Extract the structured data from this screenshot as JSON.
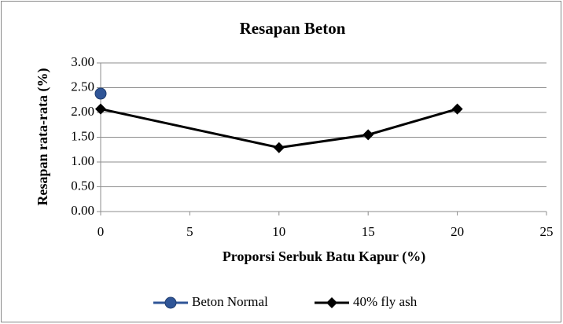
{
  "chart_data": {
    "type": "line",
    "title": "Resapan Beton",
    "xlabel": "Proporsi Serbuk Batu Kapur (%)",
    "ylabel": "Resapan rata-rata (%)",
    "series": [
      {
        "name": "Beton Normal",
        "color": "#2f5597",
        "marker": "circle",
        "x": [
          0
        ],
        "values": [
          2.38
        ]
      },
      {
        "name": "40% fly ash",
        "color": "#000000",
        "marker": "diamond",
        "x": [
          0,
          10,
          15,
          20
        ],
        "values": [
          2.07,
          1.29,
          1.55,
          2.07
        ]
      }
    ],
    "xlim": [
      0,
      25
    ],
    "xticks": [
      0,
      5,
      10,
      15,
      20,
      25
    ],
    "ylim": [
      0,
      3
    ],
    "yticks": [
      {
        "value": 0,
        "label": "0.00"
      },
      {
        "value": 0.5,
        "label": "0.50"
      },
      {
        "value": 1,
        "label": "1.00"
      },
      {
        "value": 1.5,
        "label": "1.50"
      },
      {
        "value": 2,
        "label": "2.00"
      },
      {
        "value": 2.5,
        "label": "2.50"
      },
      {
        "value": 3,
        "label": "3.00"
      }
    ],
    "grid": true,
    "legend": "bottom"
  }
}
